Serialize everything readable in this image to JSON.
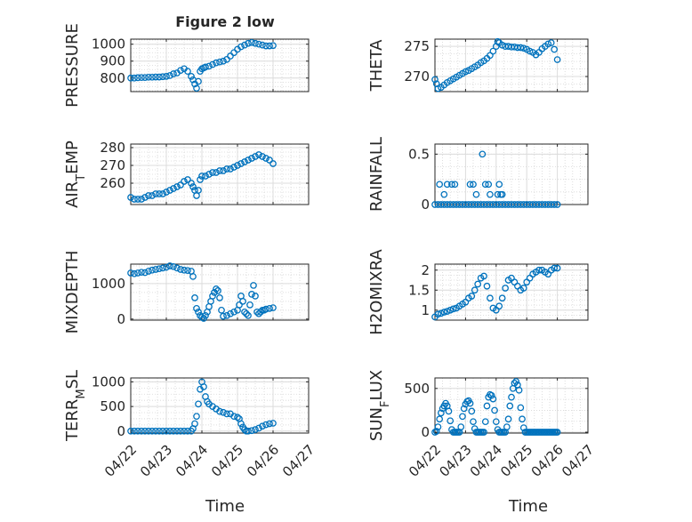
{
  "figure": {
    "title": "Figure 2 low",
    "xlabel": "Time",
    "x_ticks": [
      "04/22",
      "04/23",
      "04/24",
      "04/25",
      "04/26",
      "04/27"
    ],
    "marker_color": "#0072BD",
    "grid": "on (major + minor dotted)"
  },
  "chart_data": [
    {
      "type": "scatter",
      "ylabel": "PRESSURE",
      "xlim": [
        0,
        5
      ],
      "ylim": [
        720,
        1030
      ],
      "yticks": [
        800,
        900,
        1000
      ],
      "series": [
        {
          "x": [
            0.0,
            0.1,
            0.2,
            0.3,
            0.4,
            0.5,
            0.6,
            0.7,
            0.8,
            0.9,
            1.0,
            1.1,
            1.2,
            1.3,
            1.4,
            1.5,
            1.6,
            1.7,
            1.75,
            1.8,
            1.85,
            1.9,
            1.95,
            2.0,
            2.05,
            2.1,
            2.2,
            2.3,
            2.4,
            2.5,
            2.6,
            2.7,
            2.8,
            2.9,
            3.0,
            3.1,
            3.2,
            3.3,
            3.4,
            3.5,
            3.6,
            3.7,
            3.8,
            3.9,
            4.0
          ],
          "y": [
            800,
            800,
            802,
            803,
            803,
            805,
            805,
            806,
            806,
            808,
            810,
            815,
            825,
            830,
            845,
            855,
            840,
            810,
            790,
            765,
            740,
            780,
            840,
            855,
            860,
            865,
            870,
            880,
            890,
            895,
            900,
            910,
            930,
            950,
            970,
            985,
            995,
            1005,
            1010,
            1005,
            1000,
            995,
            990,
            990,
            992
          ]
        }
      ]
    },
    {
      "type": "scatter",
      "ylabel": "THETA",
      "xlim": [
        0,
        5
      ],
      "ylim": [
        267.5,
        276.2
      ],
      "yticks": [
        270,
        275
      ],
      "series": [
        {
          "x": [
            0.0,
            0.05,
            0.1,
            0.2,
            0.3,
            0.4,
            0.5,
            0.6,
            0.7,
            0.8,
            0.9,
            1.0,
            1.1,
            1.2,
            1.3,
            1.4,
            1.5,
            1.6,
            1.7,
            1.8,
            1.9,
            2.0,
            2.05,
            2.1,
            2.2,
            2.3,
            2.4,
            2.5,
            2.6,
            2.7,
            2.8,
            2.9,
            3.0,
            3.1,
            3.2,
            3.3,
            3.4,
            3.5,
            3.6,
            3.7,
            3.8,
            3.9,
            4.0
          ],
          "y": [
            269.5,
            268.8,
            268.0,
            268.2,
            268.6,
            269.0,
            269.3,
            269.6,
            269.9,
            270.2,
            270.5,
            270.8,
            271.0,
            271.3,
            271.6,
            271.9,
            272.3,
            272.6,
            273.0,
            273.5,
            274.2,
            275.0,
            275.8,
            275.6,
            275.2,
            275.0,
            275.0,
            274.9,
            274.9,
            274.8,
            274.8,
            274.7,
            274.5,
            274.2,
            274.0,
            273.6,
            274.0,
            274.6,
            275.0,
            275.4,
            275.6,
            274.5,
            272.8
          ]
        }
      ]
    },
    {
      "type": "scatter",
      "ylabel": "AIR_TEMP",
      "xlim": [
        0,
        5
      ],
      "ylim": [
        248,
        282
      ],
      "yticks": [
        260,
        270,
        280
      ],
      "series": [
        {
          "x": [
            0.0,
            0.1,
            0.2,
            0.3,
            0.4,
            0.5,
            0.6,
            0.7,
            0.8,
            0.9,
            1.0,
            1.1,
            1.2,
            1.3,
            1.4,
            1.5,
            1.6,
            1.7,
            1.75,
            1.8,
            1.85,
            1.9,
            1.95,
            2.0,
            2.1,
            2.2,
            2.3,
            2.4,
            2.5,
            2.6,
            2.7,
            2.8,
            2.9,
            3.0,
            3.1,
            3.2,
            3.3,
            3.4,
            3.5,
            3.6,
            3.7,
            3.8,
            3.9,
            4.0
          ],
          "y": [
            252,
            251,
            251,
            251,
            252,
            253,
            253,
            254,
            254,
            254,
            255,
            256,
            257,
            258,
            259,
            261,
            262,
            260,
            258,
            256,
            253,
            256,
            262,
            264,
            264,
            265,
            266,
            266,
            267,
            267,
            268,
            268,
            269,
            270,
            271,
            272,
            273,
            274,
            275,
            276,
            275,
            274,
            273,
            271
          ]
        }
      ]
    },
    {
      "type": "scatter",
      "ylabel": "RAINFALL",
      "xlim": [
        0,
        5
      ],
      "ylim": [
        0,
        0.6
      ],
      "yticks": [
        0,
        0.5
      ],
      "series": [
        {
          "x": [
            0.0,
            0.1,
            0.2,
            0.3,
            0.4,
            0.5,
            0.6,
            0.7,
            0.8,
            0.9,
            1.0,
            1.1,
            1.2,
            1.3,
            1.4,
            1.5,
            1.6,
            1.7,
            1.8,
            1.9,
            2.0,
            2.1,
            2.2,
            2.3,
            2.4,
            2.5,
            2.6,
            2.7,
            2.8,
            2.9,
            3.0,
            3.1,
            3.2,
            3.3,
            3.4,
            3.5,
            3.6,
            3.7,
            3.8,
            3.9,
            4.0,
            0.15,
            0.3,
            0.4,
            0.55,
            0.65,
            1.15,
            1.25,
            1.35,
            1.55,
            1.65,
            1.75,
            1.8,
            2.05,
            2.1,
            2.15,
            2.2
          ],
          "y": [
            0,
            0,
            0,
            0,
            0,
            0,
            0,
            0,
            0,
            0,
            0,
            0,
            0,
            0,
            0,
            0,
            0,
            0,
            0,
            0,
            0,
            0,
            0,
            0,
            0,
            0,
            0,
            0,
            0,
            0,
            0,
            0,
            0,
            0,
            0,
            0,
            0,
            0,
            0,
            0,
            0,
            0.2,
            0.1,
            0.2,
            0.2,
            0.2,
            0.2,
            0.2,
            0.1,
            0.5,
            0.2,
            0.2,
            0.1,
            0.1,
            0.2,
            0.1,
            0.1
          ]
        }
      ]
    },
    {
      "type": "scatter",
      "ylabel": "MIXDEPTH",
      "xlim": [
        0,
        5
      ],
      "ylim": [
        -30,
        1550
      ],
      "yticks": [
        0,
        1000
      ],
      "series": [
        {
          "x": [
            0.0,
            0.1,
            0.2,
            0.3,
            0.4,
            0.5,
            0.6,
            0.7,
            0.8,
            0.9,
            1.0,
            1.1,
            1.2,
            1.3,
            1.4,
            1.5,
            1.6,
            1.7,
            1.75,
            1.8,
            1.85,
            1.9,
            1.95,
            2.0,
            2.05,
            2.1,
            2.15,
            2.2,
            2.25,
            2.3,
            2.35,
            2.4,
            2.45,
            2.5,
            2.55,
            2.6,
            2.7,
            2.8,
            2.9,
            3.0,
            3.05,
            3.1,
            3.15,
            3.2,
            3.25,
            3.3,
            3.35,
            3.4,
            3.45,
            3.5,
            3.55,
            3.6,
            3.65,
            3.7,
            3.75,
            3.8,
            3.9,
            4.0
          ],
          "y": [
            1300,
            1280,
            1300,
            1320,
            1310,
            1350,
            1380,
            1400,
            1420,
            1440,
            1460,
            1500,
            1480,
            1440,
            1400,
            1380,
            1370,
            1350,
            1200,
            600,
            300,
            200,
            100,
            50,
            20,
            100,
            200,
            350,
            500,
            650,
            750,
            850,
            800,
            600,
            250,
            80,
            100,
            150,
            200,
            250,
            400,
            650,
            500,
            200,
            150,
            100,
            400,
            700,
            950,
            650,
            200,
            150,
            200,
            250,
            250,
            280,
            300,
            320
          ]
        }
      ]
    },
    {
      "type": "scatter",
      "ylabel": "H2OMIXRA",
      "xlim": [
        0,
        5
      ],
      "ylim": [
        0.75,
        2.15
      ],
      "yticks": [
        1,
        1.5,
        2
      ],
      "series": [
        {
          "x": [
            0.0,
            0.1,
            0.2,
            0.3,
            0.4,
            0.5,
            0.6,
            0.7,
            0.8,
            0.9,
            1.0,
            1.1,
            1.2,
            1.3,
            1.4,
            1.5,
            1.6,
            1.7,
            1.8,
            1.9,
            2.0,
            2.1,
            2.2,
            2.3,
            2.4,
            2.5,
            2.6,
            2.7,
            2.8,
            2.9,
            3.0,
            3.1,
            3.2,
            3.3,
            3.4,
            3.5,
            3.6,
            3.7,
            3.8,
            3.9,
            4.0
          ],
          "y": [
            0.83,
            0.9,
            0.92,
            0.95,
            0.97,
            1.0,
            1.03,
            1.05,
            1.1,
            1.15,
            1.2,
            1.3,
            1.35,
            1.5,
            1.65,
            1.8,
            1.85,
            1.6,
            1.3,
            1.05,
            1.0,
            1.1,
            1.3,
            1.55,
            1.75,
            1.8,
            1.7,
            1.6,
            1.5,
            1.55,
            1.7,
            1.8,
            1.9,
            1.95,
            2.0,
            2.0,
            1.95,
            1.9,
            2.0,
            2.05,
            2.05
          ]
        }
      ]
    },
    {
      "type": "scatter",
      "ylabel": "TERR_MSL",
      "xlim": [
        0,
        5
      ],
      "ylim": [
        -40,
        1080
      ],
      "yticks": [
        0,
        500,
        1000
      ],
      "series": [
        {
          "x": [
            0.0,
            0.1,
            0.2,
            0.3,
            0.4,
            0.5,
            0.6,
            0.7,
            0.8,
            0.9,
            1.0,
            1.1,
            1.2,
            1.3,
            1.4,
            1.5,
            1.6,
            1.7,
            1.75,
            1.8,
            1.85,
            1.9,
            1.95,
            2.0,
            2.05,
            2.1,
            2.15,
            2.2,
            2.3,
            2.4,
            2.5,
            2.6,
            2.7,
            2.8,
            2.9,
            3.0,
            3.05,
            3.1,
            3.15,
            3.2,
            3.25,
            3.3,
            3.4,
            3.5,
            3.6,
            3.7,
            3.8,
            3.9,
            4.0
          ],
          "y": [
            0,
            0,
            0,
            0,
            0,
            0,
            0,
            0,
            0,
            0,
            0,
            0,
            0,
            0,
            0,
            0,
            0,
            0,
            50,
            150,
            300,
            550,
            850,
            1000,
            900,
            700,
            600,
            550,
            500,
            450,
            400,
            380,
            350,
            350,
            300,
            280,
            250,
            150,
            80,
            30,
            0,
            0,
            10,
            30,
            60,
            100,
            130,
            150,
            160
          ]
        }
      ]
    },
    {
      "type": "scatter",
      "ylabel": "SUN_FLUX",
      "xlim": [
        0,
        5
      ],
      "ylim": [
        -10,
        620
      ],
      "yticks": [
        0,
        500
      ],
      "series": [
        {
          "x": [
            0.0,
            0.05,
            0.1,
            0.15,
            0.2,
            0.25,
            0.3,
            0.35,
            0.4,
            0.45,
            0.5,
            0.55,
            0.6,
            0.65,
            0.7,
            0.75,
            0.8,
            0.85,
            0.9,
            0.95,
            1.0,
            1.05,
            1.1,
            1.15,
            1.2,
            1.25,
            1.3,
            1.35,
            1.4,
            1.45,
            1.5,
            1.55,
            1.6,
            1.65,
            1.7,
            1.75,
            1.8,
            1.85,
            1.9,
            1.95,
            2.0,
            2.05,
            2.1,
            2.15,
            2.2,
            2.25,
            2.3,
            2.35,
            2.4,
            2.45,
            2.5,
            2.55,
            2.6,
            2.65,
            2.7,
            2.75,
            2.8,
            2.85,
            2.9,
            2.95,
            3.0,
            3.05,
            3.1,
            3.15,
            3.2,
            3.25,
            3.3,
            3.35,
            3.4,
            3.45,
            3.5,
            3.55,
            3.6,
            3.65,
            3.7,
            3.75,
            3.8,
            3.85,
            3.9,
            3.95,
            4.0
          ],
          "y": [
            0,
            10,
            60,
            150,
            220,
            270,
            300,
            330,
            300,
            240,
            130,
            30,
            0,
            0,
            0,
            0,
            0,
            60,
            180,
            270,
            320,
            350,
            360,
            330,
            240,
            120,
            40,
            0,
            0,
            0,
            0,
            0,
            0,
            120,
            300,
            400,
            430,
            420,
            380,
            250,
            120,
            30,
            0,
            0,
            0,
            0,
            0,
            60,
            150,
            300,
            400,
            500,
            560,
            580,
            540,
            480,
            280,
            150,
            50,
            0,
            0,
            0,
            0,
            0,
            0,
            0,
            0,
            0,
            0,
            0,
            0,
            0,
            0,
            0,
            0,
            0,
            0,
            0,
            0,
            0,
            0
          ]
        }
      ]
    }
  ]
}
